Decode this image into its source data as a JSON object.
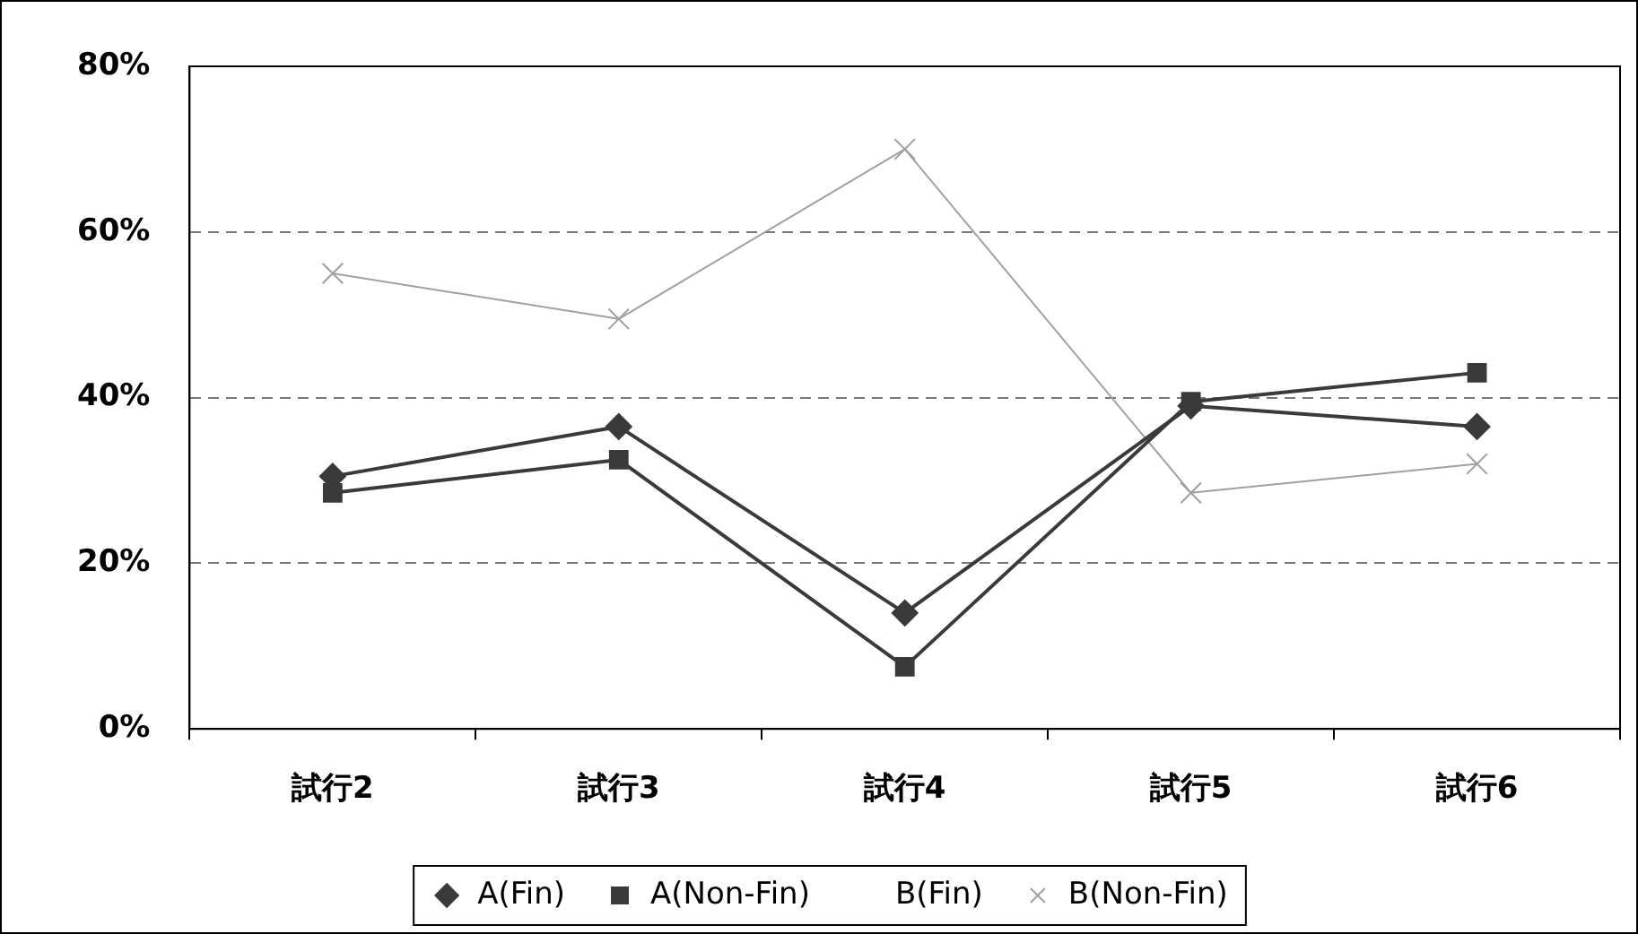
{
  "chart_data": {
    "type": "line",
    "categories": [
      "試行2",
      "試行3",
      "試行4",
      "試行5",
      "試行6"
    ],
    "series": [
      {
        "name": "A(Fin)",
        "color": "#3a3a3a",
        "marker": "diamond",
        "values": [
          30.5,
          36.5,
          14,
          39,
          36.5
        ]
      },
      {
        "name": "A(Non-Fin)",
        "color": "#3a3a3a",
        "marker": "square",
        "values": [
          28.5,
          32.5,
          7.5,
          39.5,
          43
        ]
      },
      {
        "name": "B(Fin)",
        "marker": "none",
        "values": [
          null,
          null,
          null,
          null,
          null
        ]
      },
      {
        "name": "B(Non-Fin)",
        "color": "#a0a0a0",
        "marker": "cross",
        "values": [
          55,
          49.5,
          70,
          28.5,
          32
        ]
      }
    ],
    "ylim": [
      0,
      80
    ],
    "yticks": [
      {
        "value": 0,
        "label": "0%"
      },
      {
        "value": 20,
        "label": "20%"
      },
      {
        "value": 40,
        "label": "40%"
      },
      {
        "value": 60,
        "label": "60%"
      },
      {
        "value": 80,
        "label": "80%"
      }
    ],
    "grid": "y",
    "legend": "bottom"
  }
}
